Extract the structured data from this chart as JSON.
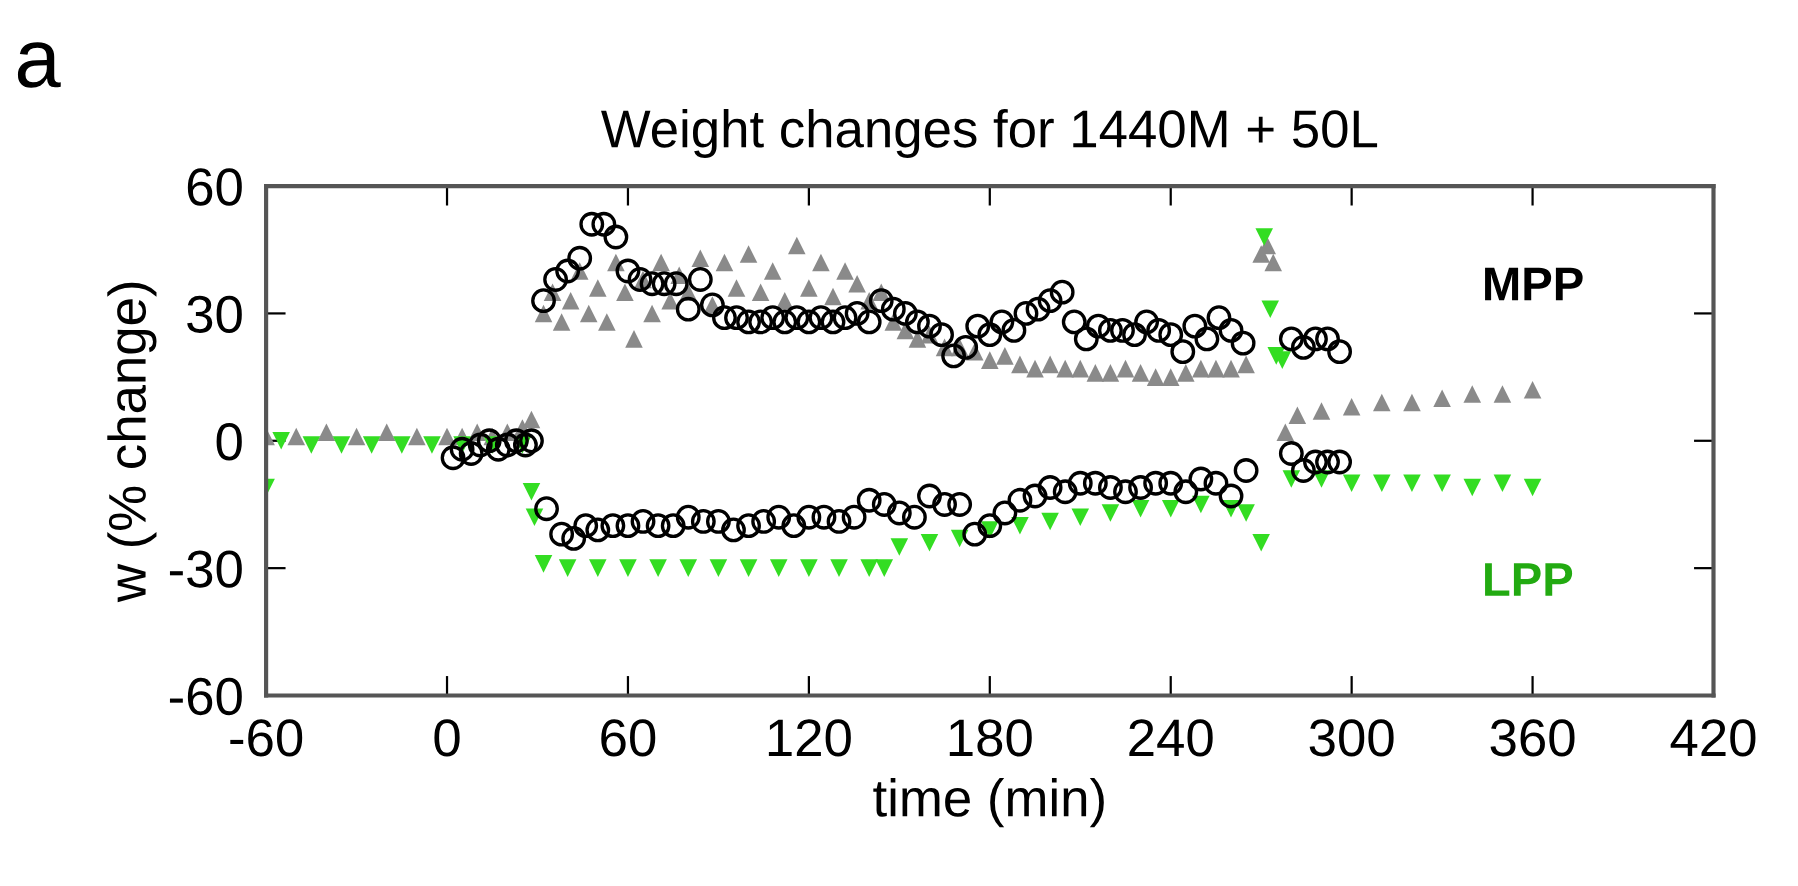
{
  "chart_data": {
    "type": "scatter",
    "title": "Weight changes for 1440M + 50L",
    "xlabel": "time (min)",
    "ylabel": "w (% change)",
    "xlim": [
      -60,
      420
    ],
    "xticks": [
      -60,
      0,
      60,
      120,
      180,
      240,
      300,
      360,
      420
    ],
    "ylim": [
      -60,
      60
    ],
    "yticks": [
      -60,
      -30,
      0,
      30,
      60
    ],
    "grid": false,
    "legend": false,
    "annotations": [
      "a",
      "MPP",
      "LPP"
    ],
    "series": [
      {
        "color": "#8a8a8a",
        "marker": "triangle",
        "x": [
          -60,
          -50,
          -40,
          -30,
          -20,
          -10,
          0,
          5,
          10,
          15,
          20,
          25,
          28,
          32,
          35,
          38,
          41,
          44,
          47,
          50,
          53,
          56,
          59,
          62,
          65,
          68,
          71,
          74,
          77,
          80,
          84,
          88,
          92,
          96,
          100,
          104,
          108,
          112,
          116,
          120,
          124,
          128,
          132,
          136,
          140,
          144,
          148,
          152,
          156,
          160,
          165,
          170,
          175,
          180,
          185,
          190,
          195,
          200,
          205,
          210,
          215,
          220,
          225,
          230,
          235,
          240,
          245,
          250,
          255,
          260,
          265,
          270,
          272,
          274,
          278,
          282,
          290,
          300,
          310,
          320,
          330,
          340,
          350,
          360
        ],
        "values": [
          1,
          1,
          2,
          1,
          2,
          1,
          1,
          1,
          2,
          1,
          2,
          3,
          5,
          30,
          35,
          28,
          33,
          40,
          30,
          36,
          28,
          42,
          35,
          24,
          38,
          30,
          42,
          33,
          39,
          35,
          43,
          32,
          42,
          36,
          44,
          35,
          40,
          33,
          46,
          36,
          42,
          34,
          40,
          37,
          33,
          35,
          28,
          26,
          24,
          25,
          22,
          22,
          21,
          19,
          20,
          18,
          17,
          18,
          17,
          17,
          16,
          16,
          17,
          16,
          15,
          15,
          16,
          17,
          17,
          17,
          18,
          44,
          46,
          42,
          2,
          6,
          7,
          8,
          9,
          9,
          10,
          11,
          11,
          12
        ]
      },
      {
        "color": "#33dd22",
        "marker": "triangle_down",
        "x": [
          -60,
          -55,
          -45,
          -35,
          -25,
          -15,
          -5,
          5,
          15,
          25,
          28,
          29,
          32,
          40,
          50,
          60,
          70,
          80,
          90,
          100,
          110,
          120,
          130,
          140,
          145,
          150,
          160,
          170,
          180,
          190,
          200,
          210,
          220,
          230,
          240,
          250,
          260,
          265,
          270,
          271,
          273,
          275,
          277,
          280,
          290,
          300,
          310,
          320,
          330,
          340,
          350,
          360
        ],
        "values": [
          -11,
          0,
          -1,
          -1,
          -1,
          -1,
          -1,
          -1,
          -1,
          -1,
          -12,
          -18,
          -29,
          -30,
          -30,
          -30,
          -30,
          -30,
          -30,
          -30,
          -30,
          -30,
          -30,
          -30,
          -30,
          -25,
          -24,
          -23,
          -21,
          -20,
          -19,
          -18,
          -17,
          -16,
          -16,
          -15,
          -16,
          -17,
          -24,
          48,
          31,
          20,
          19,
          -9,
          -9,
          -10,
          -10,
          -10,
          -10,
          -11,
          -10,
          -11
        ]
      },
      {
        "color": "#000000",
        "marker": "circle",
        "x": [
          2,
          5,
          8,
          11,
          14,
          17,
          20,
          23,
          26,
          28,
          32,
          36,
          40,
          44,
          48,
          52,
          56,
          60,
          64,
          68,
          72,
          76,
          80,
          84,
          88,
          92,
          96,
          100,
          104,
          108,
          112,
          116,
          120,
          124,
          128,
          132,
          136,
          140,
          144,
          148,
          152,
          156,
          160,
          164,
          168,
          172,
          176,
          180,
          184,
          188,
          192,
          196,
          200,
          204,
          208,
          212,
          216,
          220,
          224,
          228,
          232,
          236,
          240,
          244,
          248,
          252,
          256,
          260,
          264,
          280,
          284,
          288,
          292,
          296
        ],
        "values": [
          -4,
          -2,
          -3,
          -1,
          0,
          -2,
          -1,
          0,
          -1,
          0,
          33,
          38,
          40,
          43,
          51,
          51,
          48,
          40,
          38,
          37,
          37,
          37,
          31,
          38,
          32,
          29,
          29,
          28,
          28,
          29,
          28,
          29,
          28,
          29,
          28,
          29,
          30,
          28,
          33,
          31,
          30,
          28,
          27,
          25,
          20,
          22,
          27,
          25,
          28,
          26,
          30,
          31,
          33,
          35,
          28,
          24,
          27,
          26,
          26,
          25,
          28,
          26,
          25,
          21,
          27,
          24,
          29,
          26,
          23,
          24,
          22,
          24,
          24,
          21
        ]
      },
      {
        "color": "#000000",
        "marker": "circle",
        "x": [
          33,
          38,
          42,
          46,
          50,
          55,
          60,
          65,
          70,
          75,
          80,
          85,
          90,
          95,
          100,
          105,
          110,
          115,
          120,
          125,
          130,
          135,
          140,
          145,
          150,
          155,
          160,
          165,
          170,
          175,
          180,
          185,
          190,
          195,
          200,
          205,
          210,
          215,
          220,
          225,
          230,
          235,
          240,
          245,
          250,
          255,
          260,
          265,
          280,
          284,
          288,
          292,
          296
        ],
        "values": [
          -16,
          -22,
          -23,
          -20,
          -21,
          -20,
          -20,
          -19,
          -20,
          -20,
          -18,
          -19,
          -19,
          -21,
          -20,
          -19,
          -18,
          -20,
          -18,
          -18,
          -19,
          -18,
          -14,
          -15,
          -17,
          -18,
          -13,
          -15,
          -15,
          -22,
          -20,
          -17,
          -14,
          -13,
          -11,
          -12,
          -10,
          -10,
          -11,
          -12,
          -11,
          -10,
          -10,
          -12,
          -9,
          -10,
          -13,
          -7,
          -3,
          -7,
          -5,
          -5,
          -5
        ]
      }
    ]
  }
}
